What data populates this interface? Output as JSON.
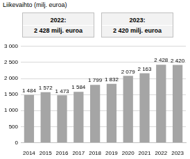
{
  "chart_data": {
    "type": "bar",
    "title": "Liikevaihto (milj. euroa)",
    "annotations": [
      {
        "title": "2022:",
        "text": "2 428 milj. euroa"
      },
      {
        "title": "2023:",
        "text": "2 420 milj. euroa"
      }
    ],
    "categories": [
      "2014",
      "2015",
      "2016",
      "2017",
      "2018",
      "2019",
      "2020",
      "2021",
      "2022",
      "2023"
    ],
    "values": [
      1484,
      1572,
      1473,
      1584,
      1799,
      1832,
      2079,
      2163,
      2428,
      2420
    ],
    "value_labels": [
      "1 484",
      "1 572",
      "1 473",
      "1 584",
      "1 799",
      "1 832",
      "2 079",
      "2 163",
      "2 428",
      "2 420"
    ],
    "data_labels": true,
    "color": "#a5a5a5",
    "ylim": [
      0,
      3000
    ],
    "yticks": [
      0,
      500,
      {
        "value": 1000,
        "label": "1 000"
      },
      {
        "value": 1500,
        "label": "1 500"
      },
      {
        "value": 2000,
        "label": "2 000"
      },
      {
        "value": 2500,
        "label": "2 500"
      },
      {
        "value": 3000,
        "label": "3 000"
      }
    ],
    "grid": true
  }
}
